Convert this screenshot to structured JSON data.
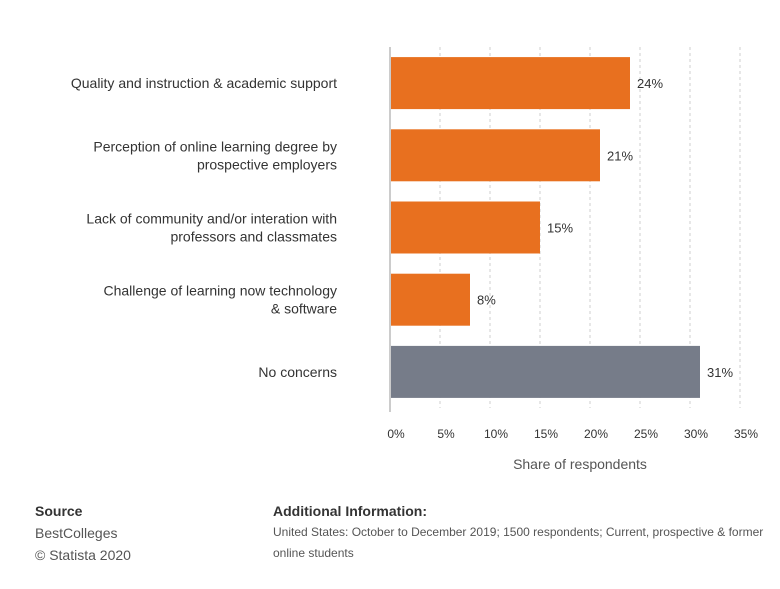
{
  "chart_data": {
    "type": "bar",
    "orientation": "horizontal",
    "categories": [
      [
        "Quality and instruction & academic support"
      ],
      [
        "Perception of online learning degree by",
        "prospective employers"
      ],
      [
        "Lack of community and/or interation with",
        "professors and classmates"
      ],
      [
        "Challenge of learning now technology",
        "& software"
      ],
      [
        "No concerns"
      ]
    ],
    "values": [
      24,
      21,
      15,
      8,
      31
    ],
    "value_labels": [
      "24%",
      "21%",
      "15%",
      "8%",
      "31%"
    ],
    "bar_colors": [
      "#e8701f",
      "#e8701f",
      "#e8701f",
      "#e8701f",
      "#767c89"
    ],
    "xlim": [
      0,
      35
    ],
    "xticks": [
      0,
      5,
      10,
      15,
      20,
      25,
      30,
      35
    ],
    "xtick_labels": [
      "0%",
      "5%",
      "10%",
      "15%",
      "20%",
      "25%",
      "30%",
      "35%"
    ],
    "xlabel": "Share of respondents",
    "grid": "vertical dashed"
  },
  "footer": {
    "source_header": "Source",
    "source_name": "BestColleges",
    "copyright": "© Statista 2020",
    "additional_header": "Additional Information:",
    "additional_text": "United States: October to December 2019; 1500 respondents; Current, prospective & former online students"
  }
}
